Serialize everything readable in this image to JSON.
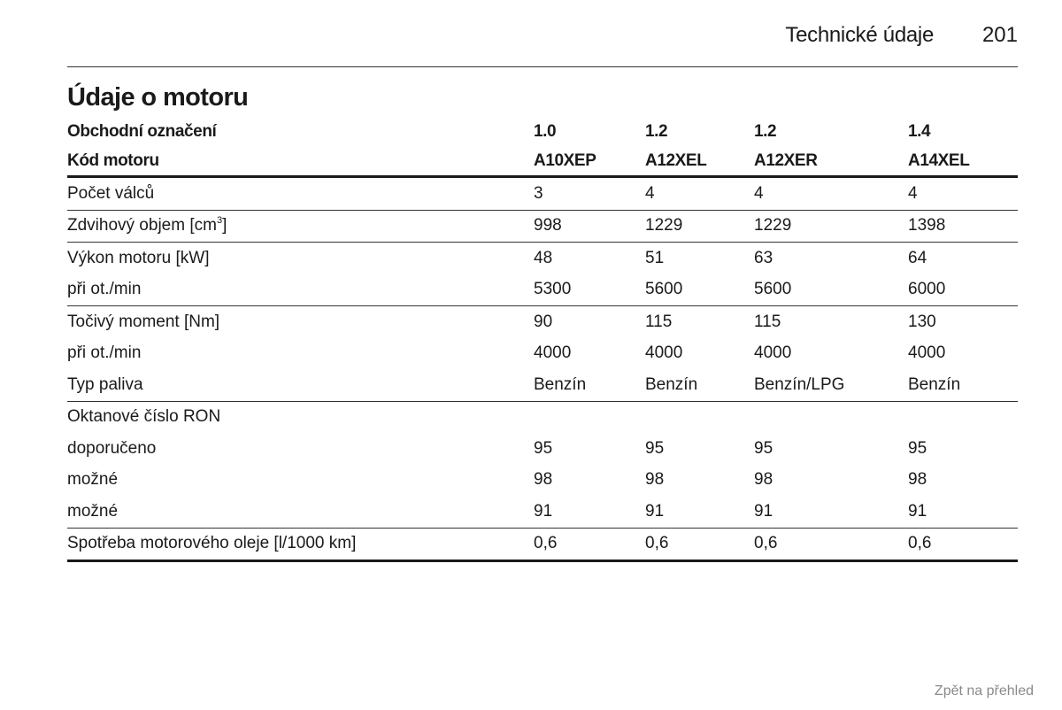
{
  "header": {
    "section": "Technické údaje",
    "page_number": "201"
  },
  "title": "Údaje o motoru",
  "table": {
    "head": [
      {
        "label": "Obchodní označení",
        "values": [
          "1.0",
          "1.2",
          "1.2",
          "1.4"
        ]
      },
      {
        "label": "Kód motoru",
        "values": [
          "A10XEP",
          "A12XEL",
          "A12XER",
          "A14XEL"
        ]
      }
    ],
    "groups": [
      [
        {
          "label": "Počet válců",
          "values": [
            "3",
            "4",
            "4",
            "4"
          ]
        }
      ],
      [
        {
          "label": "Zdvihový objem [cm",
          "sup": "3",
          "label_suffix": "]",
          "values": [
            "998",
            "1229",
            "1229",
            "1398"
          ]
        }
      ],
      [
        {
          "label": "Výkon motoru [kW]",
          "values": [
            "48",
            "51",
            "63",
            "64"
          ]
        },
        {
          "label": "při ot./min",
          "values": [
            "5300",
            "5600",
            "5600",
            "6000"
          ]
        }
      ],
      [
        {
          "label": "Točivý moment [Nm]",
          "values": [
            "90",
            "115",
            "115",
            "130"
          ]
        },
        {
          "label": "při ot./min",
          "values": [
            "4000",
            "4000",
            "4000",
            "4000"
          ]
        },
        {
          "label": "Typ paliva",
          "values": [
            "Benzín",
            "Benzín",
            "Benzín/LPG",
            "Benzín"
          ]
        }
      ],
      [
        {
          "label": "Oktanové číslo RON",
          "values": [
            "",
            "",
            "",
            ""
          ]
        },
        {
          "label": "doporučeno",
          "values": [
            "95",
            "95",
            "95",
            "95"
          ]
        },
        {
          "label": "možné",
          "values": [
            "98",
            "98",
            "98",
            "98"
          ]
        },
        {
          "label": "možné",
          "values": [
            "91",
            "91",
            "91",
            "91"
          ]
        }
      ],
      [
        {
          "label": "Spotřeba motorového oleje [l/1000 km]",
          "values": [
            "0,6",
            "0,6",
            "0,6",
            "0,6"
          ]
        }
      ]
    ]
  },
  "footer": {
    "back_link": "Zpět na přehled"
  }
}
